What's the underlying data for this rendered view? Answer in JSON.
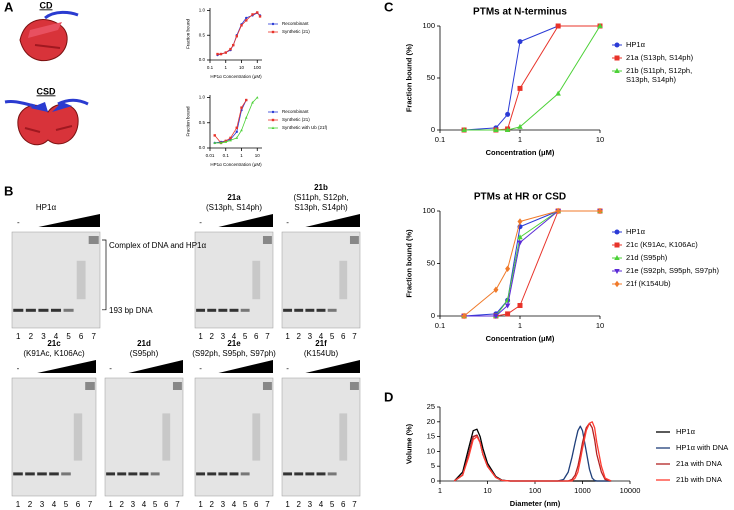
{
  "panel_labels": [
    "A",
    "B",
    "C",
    "D"
  ],
  "structures": [
    "CD",
    "CSD"
  ],
  "chart_data": [
    {
      "type": "line",
      "xlabel": "HP1α Concentration (μM)",
      "ylabel": "Fraction bound",
      "log_x": true,
      "x": [
        0.3,
        0.5,
        1,
        2,
        3,
        5,
        10,
        20,
        50,
        100,
        150
      ],
      "xlim": [
        0.1,
        200
      ],
      "xticks": [
        0.1,
        1,
        10,
        100
      ],
      "ylim": [
        0,
        1.05
      ],
      "yticks": [
        {
          "value": 0,
          "label": "0.0"
        },
        {
          "value": 0.5,
          "label": "0.5"
        },
        {
          "value": 1,
          "label": "1.0"
        }
      ],
      "legend": "right",
      "series": [
        {
          "name": "Recombinant",
          "color": "#2b3bd6",
          "marker": "circle",
          "values": [
            0.1,
            0.12,
            0.15,
            0.2,
            0.3,
            0.5,
            0.72,
            0.85,
            0.9,
            0.95,
            0.9
          ]
        },
        {
          "name": "Synthetic (21)",
          "color": "#e8332a",
          "marker": "square",
          "values": [
            0.12,
            0.12,
            0.15,
            0.22,
            0.3,
            0.48,
            0.7,
            0.8,
            0.92,
            0.96,
            0.88
          ]
        }
      ]
    },
    {
      "type": "line",
      "xlabel": "HP1α Concentration (μM)",
      "ylabel": "Fraction bound",
      "log_x": true,
      "x": [
        0.02,
        0.05,
        0.1,
        0.2,
        0.5,
        1,
        2,
        5,
        10
      ],
      "xlim": [
        0.01,
        20
      ],
      "xticks": [
        0.01,
        0.1,
        1,
        10
      ],
      "ylim": [
        0,
        1.05
      ],
      "yticks": [
        {
          "value": 0,
          "label": "0.0"
        },
        {
          "value": 0.5,
          "label": "0.5"
        },
        {
          "value": 1,
          "label": "1.0"
        }
      ],
      "legend": "right",
      "series": [
        {
          "name": "Recombinant",
          "color": "#2b3bd6",
          "marker": "circle",
          "values": [
            0.1,
            0.12,
            0.14,
            0.17,
            0.32,
            0.75,
            0.95,
            null,
            null
          ]
        },
        {
          "name": "Synthetic (21)",
          "color": "#e8332a",
          "marker": "square",
          "values": [
            0.25,
            0.1,
            0.14,
            0.2,
            0.4,
            0.8,
            0.95,
            null,
            null
          ]
        },
        {
          "name": "Synthetic with Ub (21f)",
          "color": "#4cd137",
          "marker": "triangle",
          "values": [
            0.1,
            0.1,
            0.12,
            0.15,
            0.2,
            0.35,
            0.6,
            0.9,
            1.0
          ]
        }
      ]
    },
    {
      "type": "line",
      "title": "PTMs at N-terminus",
      "xlabel": "Concentration (μM)",
      "ylabel": "Fraction bound (%)",
      "log_x": true,
      "x": [
        0.2,
        0.5,
        0.7,
        1,
        3,
        10
      ],
      "xlim": [
        0.1,
        10
      ],
      "xticks": [
        0.1,
        1,
        10
      ],
      "ylim": [
        0,
        100
      ],
      "yticks": [
        0,
        50,
        100
      ],
      "legend": "right",
      "series": [
        {
          "name": "HP1α",
          "color": "#2b3bd6",
          "marker": "circle",
          "values": [
            0,
            2,
            15,
            85,
            100,
            100
          ]
        },
        {
          "name": "21a (S13ph, S14ph)",
          "color": "#e8332a",
          "marker": "square",
          "values": [
            0,
            0,
            1,
            40,
            100,
            100
          ]
        },
        {
          "name": "21b (S11ph, S12ph, S13ph, S14ph)",
          "color": "#4cd137",
          "marker": "triangle",
          "values": [
            0,
            0,
            0,
            3,
            35,
            100
          ]
        }
      ]
    },
    {
      "type": "line",
      "title": "PTMs at HR or CSD",
      "xlabel": "Concentration (μM)",
      "ylabel": "Fraction bound (%)",
      "log_x": true,
      "x": [
        0.2,
        0.5,
        0.7,
        1,
        3,
        10
      ],
      "xlim": [
        0.1,
        10
      ],
      "xticks": [
        0.1,
        1,
        10
      ],
      "ylim": [
        0,
        100
      ],
      "yticks": [
        0,
        50,
        100
      ],
      "legend": "right",
      "series": [
        {
          "name": "HP1α",
          "color": "#2b3bd6",
          "marker": "circle",
          "values": [
            0,
            2,
            15,
            85,
            100,
            100
          ]
        },
        {
          "name": "21c (K91Ac, K106Ac)",
          "color": "#e8332a",
          "marker": "square",
          "values": [
            0,
            0,
            2,
            10,
            100,
            100
          ]
        },
        {
          "name": "21d (S95ph)",
          "color": "#4cd137",
          "marker": "triangle",
          "values": [
            0,
            0,
            15,
            75,
            100,
            100
          ]
        },
        {
          "name": "21e (S92ph, S95ph, S97ph)",
          "color": "#5b2bd6",
          "marker": "triangle-down",
          "values": [
            0,
            0,
            10,
            70,
            100,
            100
          ]
        },
        {
          "name": "21f (K154Ub)",
          "color": "#f07a2a",
          "marker": "diamond",
          "values": [
            0,
            25,
            45,
            90,
            100,
            100
          ]
        }
      ]
    },
    {
      "type": "line",
      "xlabel": "Diameter (nm)",
      "ylabel": "Volume (%)",
      "log_x": true,
      "x": [
        2,
        3,
        4,
        5,
        6,
        7,
        8,
        10,
        15,
        20,
        30,
        100,
        300,
        400,
        500,
        600,
        700,
        800,
        900,
        1000,
        1200,
        1400,
        1600,
        1800,
        2000,
        2500,
        3000,
        4000
      ],
      "xlim": [
        1,
        10000
      ],
      "xticks": [
        1,
        10,
        100,
        1000,
        10000
      ],
      "ylim": [
        0,
        25
      ],
      "yticks": [
        0,
        5,
        10,
        15,
        20,
        25
      ],
      "legend": "right",
      "series": [
        {
          "name": "HP1α",
          "color": "#000000",
          "values": [
            0,
            3,
            11,
            17,
            17.5,
            15,
            11,
            6,
            1.5,
            0.3,
            0,
            0,
            0,
            0,
            0,
            0,
            0,
            0,
            0,
            0,
            0,
            0,
            0,
            0,
            0,
            0,
            0,
            0
          ]
        },
        {
          "name": "HP1α with DNA",
          "color": "#1f3f7a",
          "values": [
            0,
            2,
            9,
            15,
            15.5,
            13,
            9,
            5,
            1.2,
            0.2,
            0,
            0,
            0,
            0.5,
            3,
            8,
            13,
            17,
            18.5,
            17,
            10,
            4,
            1,
            0.2,
            0,
            0,
            0,
            0
          ]
        },
        {
          "name": "21a with DNA",
          "color": "#b22222",
          "values": [
            0,
            2,
            9,
            15,
            15.5,
            13,
            9,
            5,
            1.2,
            0.2,
            0,
            0,
            0,
            0,
            0,
            0.5,
            2,
            5,
            9,
            13,
            18,
            19.5,
            18,
            14,
            9,
            3,
            0.5,
            0
          ]
        },
        {
          "name": "21b with DNA",
          "color": "#ff3b30",
          "values": [
            0,
            2,
            8,
            14,
            15,
            13,
            9,
            5,
            1.2,
            0.2,
            0,
            0,
            0,
            0,
            0,
            0,
            1,
            3,
            7,
            11,
            17,
            19.5,
            20,
            18,
            13,
            5,
            1,
            0
          ]
        }
      ]
    }
  ],
  "gels": {
    "lanes": [
      1,
      2,
      3,
      4,
      5,
      6,
      7
    ],
    "control_mark": "-",
    "annotations": [
      "Complex of DNA and HP1α",
      "193 bp DNA"
    ],
    "items": [
      {
        "title": "HP1α"
      },
      {
        "title": "21a",
        "subtitle": [
          "(S13ph, S14ph)"
        ]
      },
      {
        "title": "21b",
        "subtitle": [
          "(S11ph, S12ph,",
          "S13ph, S14ph)"
        ]
      },
      {
        "title": "21c",
        "subtitle": [
          "(K91Ac, K106Ac)"
        ]
      },
      {
        "title": "21d",
        "subtitle": [
          "(S95ph)"
        ]
      },
      {
        "title": "21e",
        "subtitle": [
          "(S92ph, S95ph, S97ph)"
        ]
      },
      {
        "title": "21f",
        "subtitle": [
          "(K154Ub)"
        ]
      }
    ]
  }
}
